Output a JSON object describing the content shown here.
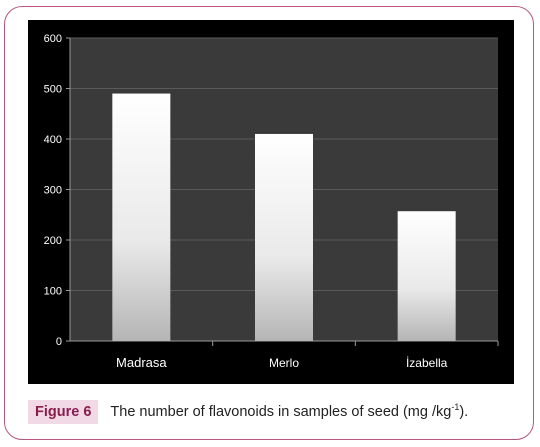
{
  "chart_data": {
    "type": "bar",
    "categories": [
      "Madrasa",
      "Merlo",
      "İzabella"
    ],
    "values": [
      490,
      410,
      257
    ],
    "ylim": [
      0,
      600
    ],
    "yticks": [
      "0",
      "100",
      "200",
      "300",
      "400",
      "500",
      "600"
    ],
    "grid": true,
    "colors": {
      "background": "#000000",
      "plot_area": "#3a3a3a",
      "grid": "#5a5a5a",
      "bar_top": "#ffffff",
      "bar_bottom": "#bdbdbd",
      "tick_text": "#ffffff"
    }
  },
  "caption": {
    "label": "Figure 6",
    "text_before_sup": "The number of flavonoids in samples of seed (mg /kg",
    "sup": "-1",
    "text_after_sup": ")."
  }
}
